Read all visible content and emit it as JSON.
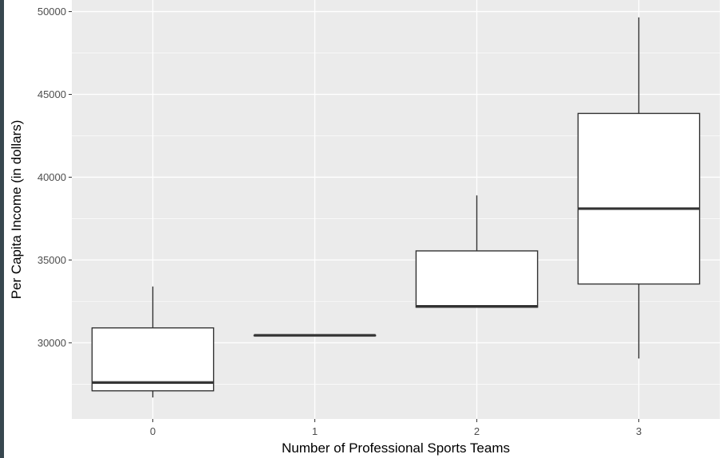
{
  "chart_data": {
    "type": "boxplot",
    "title": "",
    "xlabel": "Number of Professional Sports Teams",
    "ylabel": "Per Capita Income (in dollars)",
    "categories": [
      "0",
      "1",
      "2",
      "3"
    ],
    "y_ticks": [
      30000,
      35000,
      40000,
      45000,
      50000
    ],
    "y_tick_labels": [
      "30000",
      "35000",
      "40000",
      "45000",
      "50000"
    ],
    "ylim": [
      25400,
      50700
    ],
    "grid": true,
    "background": "#ebebeb",
    "grid_color": "#ffffff",
    "box_fill": "#ffffff",
    "box_stroke": "#333333",
    "boxes": [
      {
        "category": "0",
        "whisker_low": 26700,
        "q1": 27100,
        "median": 27600,
        "q3": 30900,
        "whisker_high": 33400
      },
      {
        "category": "1",
        "whisker_low": 30450,
        "q1": 30450,
        "median": 30450,
        "q3": 30450,
        "whisker_high": 30450
      },
      {
        "category": "2",
        "whisker_low": 32150,
        "q1": 32150,
        "median": 32200,
        "q3": 35550,
        "whisker_high": 38900
      },
      {
        "category": "3",
        "whisker_low": 29050,
        "q1": 33550,
        "median": 38100,
        "q3": 43850,
        "whisker_high": 49650
      }
    ]
  }
}
